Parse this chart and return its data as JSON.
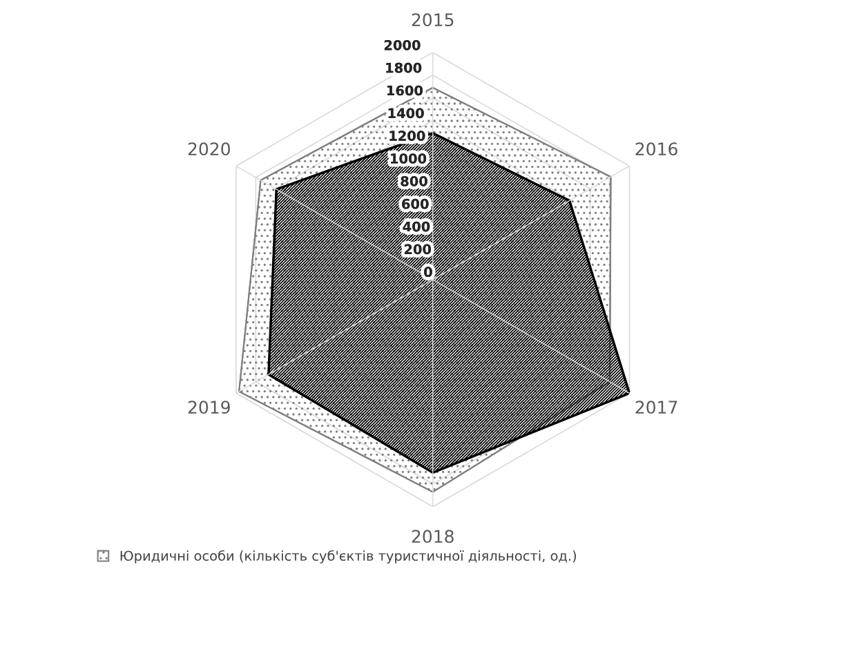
{
  "chart_data": {
    "type": "radar",
    "categories": [
      "2015",
      "2016",
      "2017",
      "2018",
      "2019",
      "2020"
    ],
    "series": [
      {
        "name": "Юридичні особи (кількість суб'єктів туристичної діяльності, од.)",
        "color": "#7f7f7f",
        "values": [
          1690,
          1810,
          1800,
          1870,
          1970,
          1750
        ]
      },
      {
        "color": "#000000",
        "values": [
          1290,
          1390,
          2000,
          1700,
          1670,
          1590
        ]
      }
    ],
    "ylim": [
      0,
      2000
    ],
    "yticks": [
      0,
      200,
      400,
      600,
      800,
      1000,
      1200,
      1400,
      1600,
      1800,
      2000
    ],
    "grid": true,
    "legend": "bottom"
  }
}
